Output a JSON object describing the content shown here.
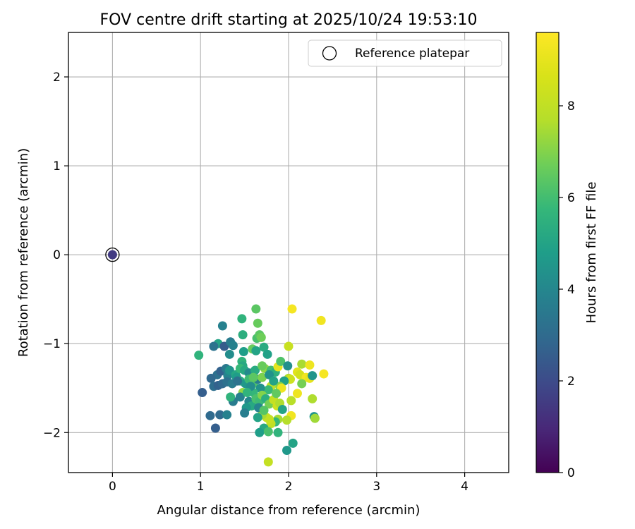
{
  "chart_data": {
    "type": "scatter",
    "title": "FOV centre drift starting at 2025/10/24 19:53:10",
    "xlabel": "Angular distance from reference (arcmin)",
    "ylabel": "Rotation from reference (arcmin)",
    "xlim": [
      -0.5,
      4.5
    ],
    "ylim": [
      -2.45,
      2.5
    ],
    "xticks": [
      0,
      1,
      2,
      3,
      4
    ],
    "yticks": [
      -2,
      -1,
      0,
      1,
      2
    ],
    "xtick_labels": [
      "0",
      "1",
      "2",
      "3",
      "4"
    ],
    "ytick_labels": [
      "−2",
      "−1",
      "0",
      "1",
      "2"
    ],
    "grid": true,
    "legend": {
      "placement": "top-right",
      "entries": [
        {
          "label": "Reference platepar",
          "marker": "open-circle"
        }
      ]
    },
    "reference_point": {
      "x": 0,
      "y": 0,
      "hours": 1.5
    },
    "colorbar": {
      "label": "Hours from first FF file",
      "cmap": "viridis",
      "range": [
        0,
        9.6
      ],
      "ticks": [
        0,
        2,
        4,
        6,
        8
      ],
      "tick_labels": [
        "0",
        "2",
        "4",
        "6",
        "8"
      ]
    },
    "points": [
      {
        "x": 1.25,
        "y": -0.8,
        "h": 3.8
      },
      {
        "x": 1.2,
        "y": -1.0,
        "h": 5.0
      },
      {
        "x": 1.15,
        "y": -1.03,
        "h": 3.3
      },
      {
        "x": 1.27,
        "y": -1.03,
        "h": 2.5
      },
      {
        "x": 1.34,
        "y": -0.98,
        "h": 3.6
      },
      {
        "x": 1.37,
        "y": -1.02,
        "h": 3.8
      },
      {
        "x": 1.33,
        "y": -1.12,
        "h": 4.2
      },
      {
        "x": 0.98,
        "y": -1.13,
        "h": 5.6
      },
      {
        "x": 1.47,
        "y": -0.72,
        "h": 5.6
      },
      {
        "x": 1.63,
        "y": -0.61,
        "h": 6.4
      },
      {
        "x": 1.65,
        "y": -0.77,
        "h": 6.6
      },
      {
        "x": 1.48,
        "y": -0.9,
        "h": 5.4
      },
      {
        "x": 1.64,
        "y": -0.94,
        "h": 6.1
      },
      {
        "x": 1.67,
        "y": -0.9,
        "h": 6.4
      },
      {
        "x": 1.69,
        "y": -0.93,
        "h": 6.7
      },
      {
        "x": 1.59,
        "y": -1.06,
        "h": 6.6
      },
      {
        "x": 1.63,
        "y": -1.08,
        "h": 5.0
      },
      {
        "x": 1.72,
        "y": -1.04,
        "h": 5.3
      },
      {
        "x": 1.76,
        "y": -1.12,
        "h": 4.9
      },
      {
        "x": 1.49,
        "y": -1.09,
        "h": 4.8
      },
      {
        "x": 1.47,
        "y": -1.2,
        "h": 5.6
      },
      {
        "x": 1.48,
        "y": -1.25,
        "h": 5.2
      },
      {
        "x": 1.19,
        "y": -1.35,
        "h": 3.2
      },
      {
        "x": 1.23,
        "y": -1.31,
        "h": 2.7
      },
      {
        "x": 1.29,
        "y": -1.28,
        "h": 3.5
      },
      {
        "x": 1.31,
        "y": -1.36,
        "h": 3.9
      },
      {
        "x": 1.33,
        "y": -1.3,
        "h": 4.5
      },
      {
        "x": 1.4,
        "y": -1.35,
        "h": 5.1
      },
      {
        "x": 1.45,
        "y": -1.28,
        "h": 5.8
      },
      {
        "x": 1.5,
        "y": -1.3,
        "h": 5.2
      },
      {
        "x": 1.55,
        "y": -1.33,
        "h": 4.1
      },
      {
        "x": 1.12,
        "y": -1.39,
        "h": 2.9
      },
      {
        "x": 1.15,
        "y": -1.48,
        "h": 3.1
      },
      {
        "x": 1.2,
        "y": -1.47,
        "h": 2.7
      },
      {
        "x": 1.25,
        "y": -1.45,
        "h": 2.9
      },
      {
        "x": 1.3,
        "y": -1.43,
        "h": 3.2
      },
      {
        "x": 1.36,
        "y": -1.45,
        "h": 3.6
      },
      {
        "x": 1.41,
        "y": -1.38,
        "h": 4.8
      },
      {
        "x": 1.45,
        "y": -1.42,
        "h": 5.3
      },
      {
        "x": 1.51,
        "y": -1.45,
        "h": 4.6
      },
      {
        "x": 1.55,
        "y": -1.4,
        "h": 5.9
      },
      {
        "x": 1.6,
        "y": -1.45,
        "h": 6.2
      },
      {
        "x": 1.65,
        "y": -1.4,
        "h": 3.7
      },
      {
        "x": 1.7,
        "y": -1.38,
        "h": 6.9
      },
      {
        "x": 1.73,
        "y": -1.28,
        "h": 7.2
      },
      {
        "x": 1.8,
        "y": -1.3,
        "h": 6.0
      },
      {
        "x": 1.85,
        "y": -1.32,
        "h": 5.5
      },
      {
        "x": 1.88,
        "y": -1.26,
        "h": 9.0
      },
      {
        "x": 1.91,
        "y": -1.2,
        "h": 6.2
      },
      {
        "x": 1.99,
        "y": -1.25,
        "h": 4.3
      },
      {
        "x": 2.0,
        "y": -1.03,
        "h": 8.2
      },
      {
        "x": 2.04,
        "y": -0.61,
        "h": 9.4
      },
      {
        "x": 2.37,
        "y": -0.74,
        "h": 9.3
      },
      {
        "x": 2.15,
        "y": -1.23,
        "h": 7.5
      },
      {
        "x": 2.24,
        "y": -1.24,
        "h": 9.2
      },
      {
        "x": 2.1,
        "y": -1.32,
        "h": 8.9
      },
      {
        "x": 2.13,
        "y": -1.35,
        "h": 8.5
      },
      {
        "x": 2.2,
        "y": -1.38,
        "h": 9.3
      },
      {
        "x": 2.24,
        "y": -1.39,
        "h": 9.0
      },
      {
        "x": 2.27,
        "y": -1.36,
        "h": 4.5
      },
      {
        "x": 2.4,
        "y": -1.34,
        "h": 9.4
      },
      {
        "x": 2.15,
        "y": -1.45,
        "h": 6.8
      },
      {
        "x": 2.0,
        "y": -1.39,
        "h": 7.6
      },
      {
        "x": 2.02,
        "y": -1.4,
        "h": 8.3
      },
      {
        "x": 1.95,
        "y": -1.42,
        "h": 4.9
      },
      {
        "x": 1.9,
        "y": -1.48,
        "h": 7.0
      },
      {
        "x": 1.92,
        "y": -1.5,
        "h": 9.2
      },
      {
        "x": 1.8,
        "y": -1.48,
        "h": 7.9
      },
      {
        "x": 1.77,
        "y": -1.52,
        "h": 5.8
      },
      {
        "x": 1.68,
        "y": -1.5,
        "h": 4.4
      },
      {
        "x": 1.6,
        "y": -1.55,
        "h": 5.7
      },
      {
        "x": 1.48,
        "y": -1.55,
        "h": 7.2
      },
      {
        "x": 1.45,
        "y": -1.6,
        "h": 3.8
      },
      {
        "x": 1.37,
        "y": -1.65,
        "h": 3.6
      },
      {
        "x": 1.34,
        "y": -1.6,
        "h": 5.6
      },
      {
        "x": 1.55,
        "y": -1.65,
        "h": 4.0
      },
      {
        "x": 1.58,
        "y": -1.7,
        "h": 5.2
      },
      {
        "x": 1.52,
        "y": -1.72,
        "h": 4.6
      },
      {
        "x": 1.5,
        "y": -1.78,
        "h": 3.7
      },
      {
        "x": 1.63,
        "y": -1.62,
        "h": 6.1
      },
      {
        "x": 1.67,
        "y": -1.65,
        "h": 5.9
      },
      {
        "x": 1.7,
        "y": -1.58,
        "h": 7.0
      },
      {
        "x": 1.74,
        "y": -1.62,
        "h": 5.4
      },
      {
        "x": 1.78,
        "y": -1.68,
        "h": 6.8
      },
      {
        "x": 1.83,
        "y": -1.63,
        "h": 8.1
      },
      {
        "x": 1.87,
        "y": -1.7,
        "h": 8.3
      },
      {
        "x": 1.9,
        "y": -1.67,
        "h": 7.6
      },
      {
        "x": 1.93,
        "y": -1.74,
        "h": 5.0
      },
      {
        "x": 2.03,
        "y": -1.64,
        "h": 7.8
      },
      {
        "x": 2.1,
        "y": -1.56,
        "h": 9.2
      },
      {
        "x": 2.27,
        "y": -1.62,
        "h": 7.6
      },
      {
        "x": 2.29,
        "y": -1.82,
        "h": 4.5
      },
      {
        "x": 2.3,
        "y": -1.84,
        "h": 7.4
      },
      {
        "x": 2.03,
        "y": -1.81,
        "h": 9.3
      },
      {
        "x": 1.98,
        "y": -1.86,
        "h": 7.7
      },
      {
        "x": 1.88,
        "y": -1.85,
        "h": 7.5
      },
      {
        "x": 1.85,
        "y": -1.88,
        "h": 5.8
      },
      {
        "x": 1.8,
        "y": -1.9,
        "h": 8.0
      },
      {
        "x": 1.78,
        "y": -1.85,
        "h": 8.2
      },
      {
        "x": 1.75,
        "y": -1.83,
        "h": 8.1
      },
      {
        "x": 1.7,
        "y": -1.8,
        "h": 7.5
      },
      {
        "x": 1.65,
        "y": -1.83,
        "h": 5.0
      },
      {
        "x": 1.72,
        "y": -1.95,
        "h": 5.2
      },
      {
        "x": 1.67,
        "y": -2.0,
        "h": 4.8
      },
      {
        "x": 1.77,
        "y": -1.99,
        "h": 6.1
      },
      {
        "x": 1.88,
        "y": -2.0,
        "h": 5.6
      },
      {
        "x": 1.98,
        "y": -2.2,
        "h": 4.6
      },
      {
        "x": 2.05,
        "y": -2.12,
        "h": 5.0
      },
      {
        "x": 1.77,
        "y": -2.33,
        "h": 8.1
      },
      {
        "x": 1.22,
        "y": -1.8,
        "h": 3.0
      },
      {
        "x": 1.11,
        "y": -1.81,
        "h": 3.0
      },
      {
        "x": 1.17,
        "y": -1.95,
        "h": 2.6
      },
      {
        "x": 1.02,
        "y": -1.55,
        "h": 2.6
      },
      {
        "x": 1.3,
        "y": -1.8,
        "h": 3.8
      },
      {
        "x": 1.42,
        "y": -1.42,
        "h": 3.3
      },
      {
        "x": 1.57,
        "y": -1.48,
        "h": 4.2
      },
      {
        "x": 1.62,
        "y": -1.3,
        "h": 5.3
      },
      {
        "x": 1.7,
        "y": -1.25,
        "h": 6.6
      },
      {
        "x": 1.78,
        "y": -1.35,
        "h": 4.4
      },
      {
        "x": 1.83,
        "y": -1.42,
        "h": 5.0
      },
      {
        "x": 1.6,
        "y": -1.38,
        "h": 6.4
      },
      {
        "x": 1.53,
        "y": -1.55,
        "h": 5.6
      },
      {
        "x": 1.66,
        "y": -1.72,
        "h": 3.9
      },
      {
        "x": 1.72,
        "y": -1.75,
        "h": 6.3
      },
      {
        "x": 1.86,
        "y": -1.56,
        "h": 6.5
      }
    ]
  }
}
